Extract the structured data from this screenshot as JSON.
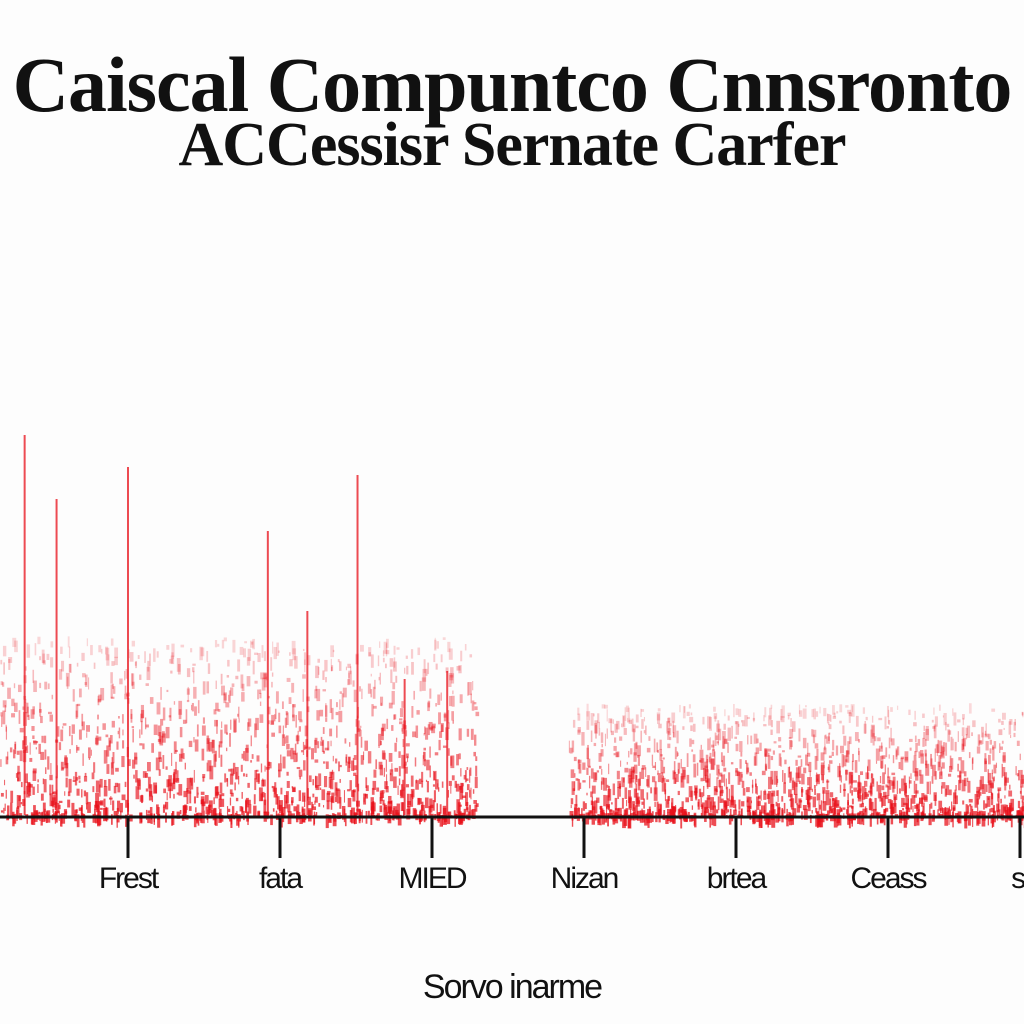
{
  "chart_data": {
    "type": "bar",
    "title": "Caiscal Compuntco Cnnsronto",
    "subtitle": "ACCessisr Sernate Carfer",
    "xlabel": "Sorvo inarme",
    "ylabel": "",
    "categories": [
      "Frest",
      "fata",
      "MIED",
      "Nizan",
      "brtea",
      "Ceass",
      "si"
    ],
    "series_color": "#e8101a",
    "axis_color": "#111111",
    "ylim": [
      0,
      1
    ],
    "grid": false,
    "spikes": [
      {
        "x": -0.68,
        "value": 0.95
      },
      {
        "x": -0.47,
        "value": 0.79
      },
      {
        "x": 0.0,
        "value": 0.87
      },
      {
        "x": 0.92,
        "value": 0.71
      },
      {
        "x": 1.18,
        "value": 0.51
      },
      {
        "x": 1.51,
        "value": 0.85
      },
      {
        "x": 1.82,
        "value": 0.34
      },
      {
        "x": 2.1,
        "value": 0.36
      }
    ],
    "haze": [
      {
        "x_from": -0.84,
        "x_to": 2.3,
        "value": 0.45
      },
      {
        "x_from": 2.9,
        "x_to": 5.9,
        "value": 0.28
      }
    ]
  }
}
